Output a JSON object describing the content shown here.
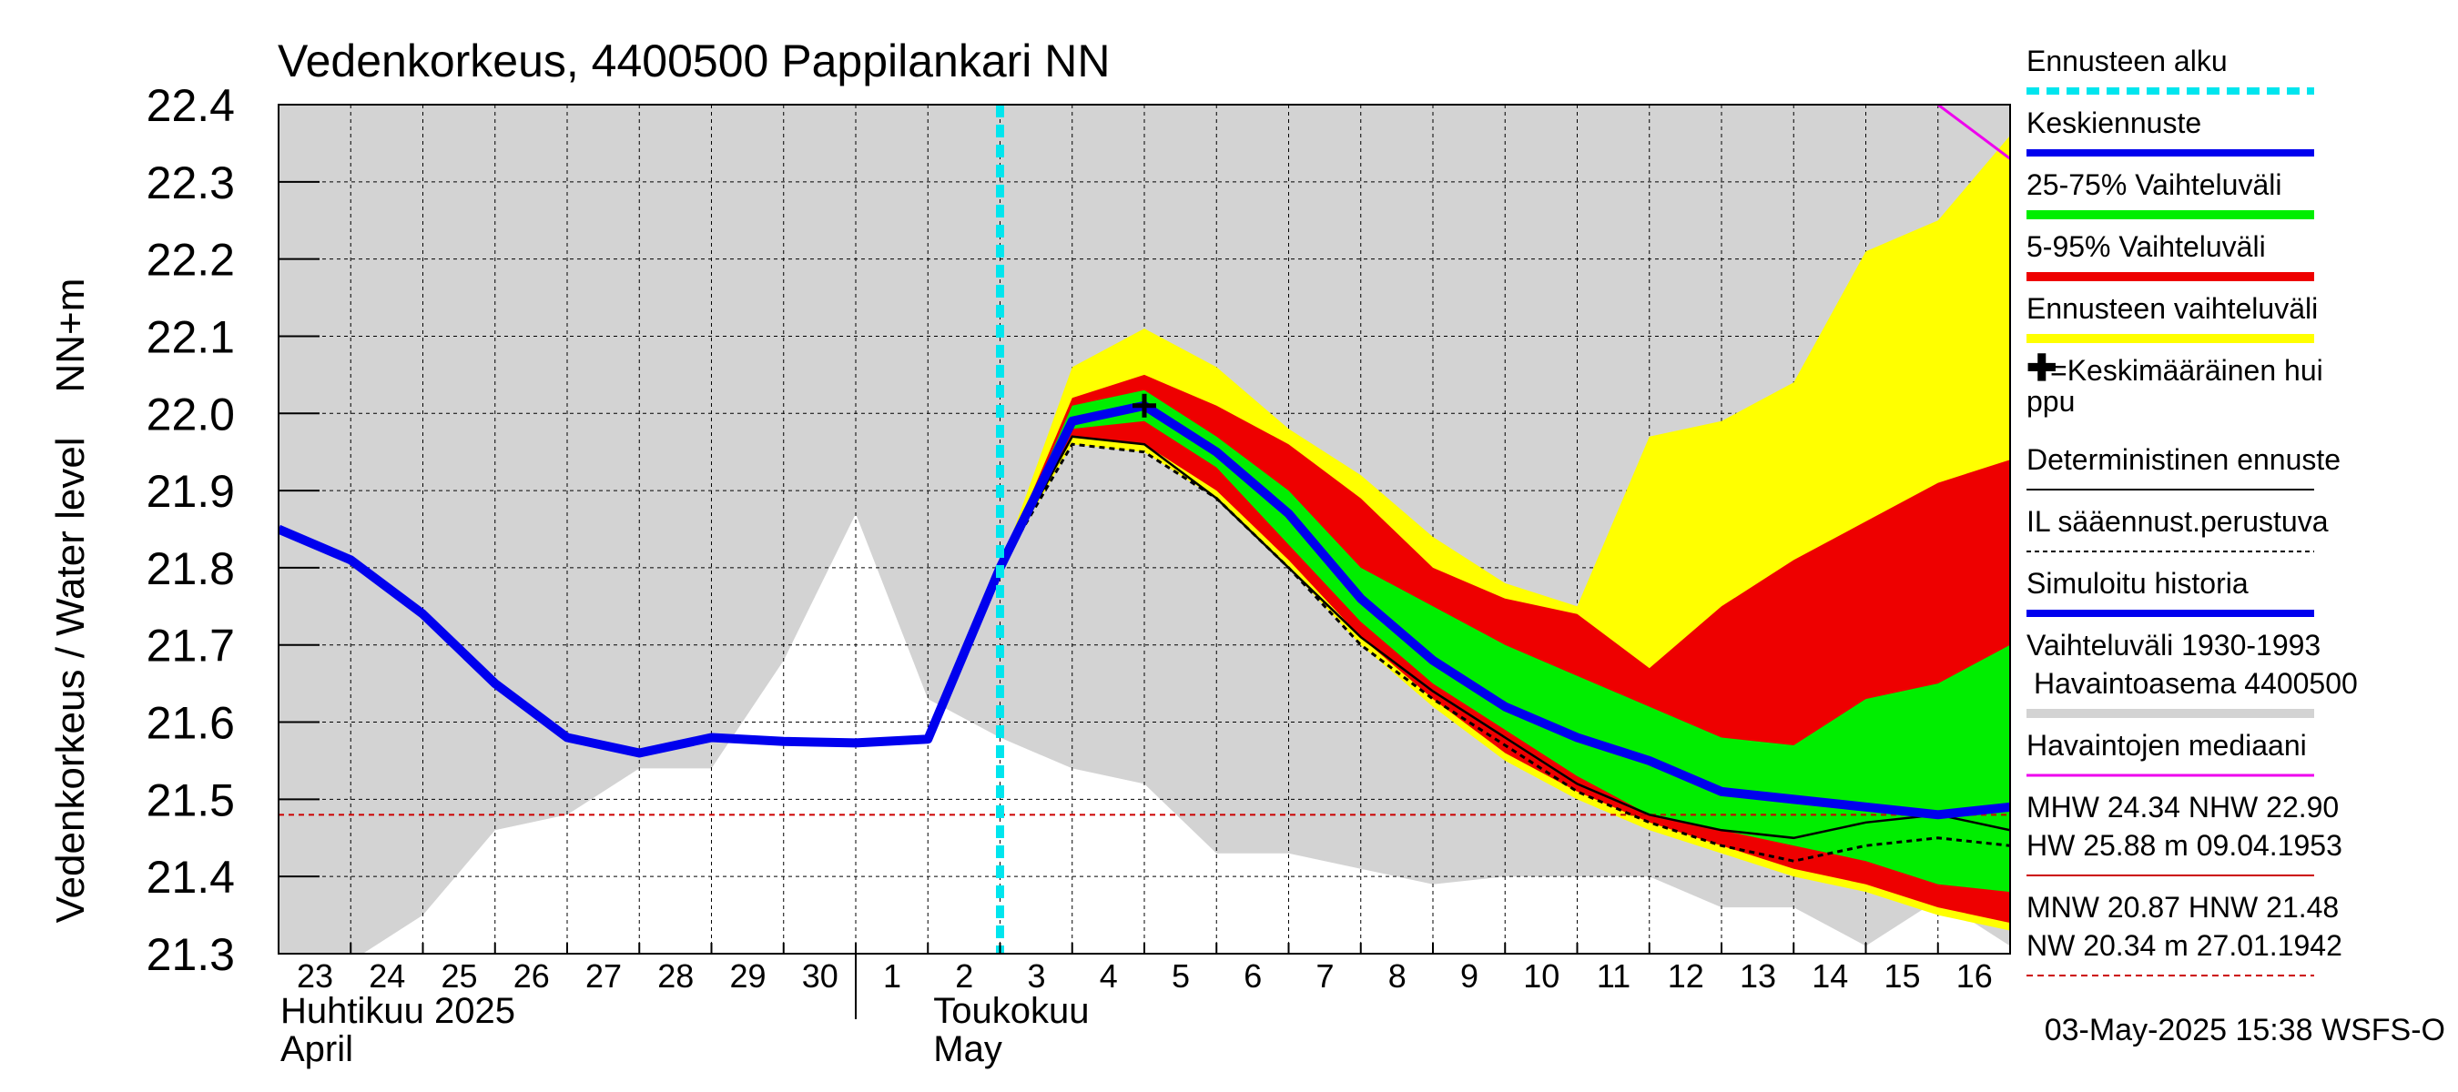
{
  "chart_data": {
    "type": "line",
    "title": "Vedenkorkeus, 4400500 Pappilankari NN",
    "ylabel": "Vedenkorkeus / Water level    NN+m",
    "ylim": [
      21.3,
      22.4
    ],
    "yticks": [
      "21.3",
      "21.4",
      "21.5",
      "21.6",
      "21.7",
      "21.8",
      "21.9",
      "22.0",
      "22.1",
      "22.2",
      "22.3",
      "22.4"
    ],
    "xlim": [
      0,
      24
    ],
    "x_tick_labels": [
      "23",
      "24",
      "25",
      "26",
      "27",
      "28",
      "29",
      "30",
      "1",
      "2",
      "3",
      "4",
      "5",
      "6",
      "7",
      "8",
      "9",
      "10",
      "11",
      "12",
      "13",
      "14",
      "15",
      "16"
    ],
    "month_labels": [
      {
        "line1": "Huhtikuu  2025",
        "line2": "April",
        "x": 0
      },
      {
        "line1": "Toukokuu",
        "line2": "May",
        "x": 9
      }
    ],
    "month_divider_x": 8,
    "forecast_start_x": 10,
    "grid": true,
    "legend_position": "right",
    "footer": "03-May-2025 15:38 WSFS-O",
    "reference_lines": {
      "mhw_hw": 21.48
    },
    "series": [
      {
        "name": "Vaihteluväli 1930-1993 Havaintoasema 4400500",
        "kind": "band",
        "x": [
          0,
          1,
          2,
          3,
          4,
          5,
          6,
          7,
          8,
          9,
          10,
          11,
          12,
          13,
          14,
          15,
          16,
          17,
          18,
          19,
          20,
          21,
          22,
          23,
          24
        ],
        "lower": [
          21.3,
          21.29,
          21.35,
          21.46,
          21.48,
          21.54,
          21.54,
          21.68,
          21.87,
          21.63,
          21.58,
          21.54,
          21.52,
          21.43,
          21.43,
          21.41,
          21.39,
          21.4,
          21.4,
          21.4,
          21.36,
          21.36,
          21.31,
          21.37,
          21.31
        ],
        "upper": [
          22.4,
          22.4,
          22.4,
          22.4,
          22.4,
          22.4,
          22.4,
          22.4,
          22.4,
          22.4,
          22.4,
          22.4,
          22.4,
          22.4,
          22.4,
          22.4,
          22.4,
          22.4,
          22.4,
          22.4,
          22.4,
          22.4,
          22.4,
          22.4,
          22.4
        ]
      },
      {
        "name": "Ennusteen vaihteluväli",
        "kind": "band",
        "x": [
          10,
          11,
          12,
          13,
          14,
          15,
          16,
          17,
          18,
          19,
          20,
          21,
          22,
          23,
          24
        ],
        "lower": [
          21.8,
          21.96,
          21.95,
          21.89,
          21.8,
          21.7,
          21.62,
          21.55,
          21.5,
          21.46,
          21.43,
          21.4,
          21.38,
          21.35,
          21.33
        ],
        "upper": [
          21.8,
          22.06,
          22.11,
          22.06,
          21.98,
          21.92,
          21.84,
          21.78,
          21.75,
          21.97,
          21.99,
          22.04,
          22.21,
          22.25,
          22.36
        ]
      },
      {
        "name": "5-95% Vaihteluväli",
        "kind": "band",
        "x": [
          10,
          11,
          12,
          13,
          14,
          15,
          16,
          17,
          18,
          19,
          20,
          21,
          22,
          23,
          24
        ],
        "lower": [
          21.8,
          21.97,
          21.96,
          21.9,
          21.81,
          21.71,
          21.63,
          21.56,
          21.51,
          21.47,
          21.44,
          21.41,
          21.39,
          21.36,
          21.34
        ],
        "upper": [
          21.8,
          22.02,
          22.05,
          22.01,
          21.96,
          21.89,
          21.8,
          21.76,
          21.74,
          21.67,
          21.75,
          21.81,
          21.86,
          21.91,
          21.94
        ]
      },
      {
        "name": "25-75% Vaihteluväli",
        "kind": "band",
        "x": [
          10,
          11,
          12,
          13,
          14,
          15,
          16,
          17,
          18,
          19,
          20,
          21,
          22,
          23,
          24
        ],
        "lower": [
          21.8,
          21.98,
          21.99,
          21.93,
          21.83,
          21.73,
          21.65,
          21.59,
          21.53,
          21.48,
          21.46,
          21.44,
          21.42,
          21.39,
          21.38
        ],
        "upper": [
          21.8,
          22.01,
          22.03,
          21.97,
          21.9,
          21.8,
          21.75,
          21.7,
          21.66,
          21.62,
          21.58,
          21.57,
          21.63,
          21.65,
          21.7
        ]
      },
      {
        "name": "Simuloitu historia",
        "kind": "line",
        "x": [
          0,
          1,
          2,
          3,
          4,
          5,
          6,
          7,
          8,
          9,
          10
        ],
        "y": [
          21.85,
          21.81,
          21.74,
          21.65,
          21.58,
          21.56,
          21.58,
          21.575,
          21.573,
          21.578,
          21.8
        ]
      },
      {
        "name": "Keskiennuste",
        "kind": "line",
        "x": [
          10,
          11,
          12,
          13,
          14,
          15,
          16,
          17,
          18,
          19,
          20,
          21,
          22,
          23,
          24
        ],
        "y": [
          21.8,
          21.99,
          22.01,
          21.95,
          21.87,
          21.76,
          21.68,
          21.62,
          21.58,
          21.55,
          21.51,
          21.5,
          21.49,
          21.48,
          21.49
        ]
      },
      {
        "name": "Deterministinen ennuste",
        "kind": "line",
        "x": [
          10,
          11,
          12,
          13,
          14,
          15,
          16,
          17,
          18,
          19,
          20,
          21,
          22,
          23,
          24
        ],
        "y": [
          21.8,
          21.97,
          21.96,
          21.89,
          21.8,
          21.71,
          21.64,
          21.58,
          21.52,
          21.48,
          21.46,
          21.45,
          21.47,
          21.48,
          21.46
        ]
      },
      {
        "name": "IL sääennust.perustuva",
        "kind": "line",
        "x": [
          10,
          11,
          12,
          13,
          14,
          15,
          16,
          17,
          18,
          19,
          20,
          21,
          22,
          23,
          24
        ],
        "y": [
          21.8,
          21.96,
          21.95,
          21.89,
          21.8,
          21.7,
          21.63,
          21.57,
          21.51,
          21.47,
          21.44,
          21.42,
          21.44,
          21.45,
          21.44
        ]
      },
      {
        "name": "Havaintojen mediaani",
        "kind": "line",
        "x": [
          23.0,
          24
        ],
        "y": [
          22.4,
          22.33
        ]
      }
    ],
    "peak_marker": {
      "x": 12.0,
      "y": 22.01
    },
    "legend": [
      {
        "label": "Ennusteen alku",
        "style": "dash",
        "color": "#00e5ee",
        "width": 8
      },
      {
        "label": "Keskiennuste",
        "style": "solid",
        "color": "#0000ee",
        "width": 8
      },
      {
        "label": "25-75% Vaihteluväli",
        "style": "solid",
        "color": "#00ee00",
        "width": 10
      },
      {
        "label": "5-95% Vaihteluväli",
        "style": "solid",
        "color": "#ee0000",
        "width": 10
      },
      {
        "label": "Ennusteen vaihteluväli",
        "style": "solid",
        "color": "#ffff00",
        "width": 10
      },
      {
        "label": "✚=Keskimääräinen huippu",
        "style": "none",
        "color": "#000000",
        "width": 0
      },
      {
        "label": "Deterministinen ennuste",
        "style": "solid",
        "color": "#000000",
        "width": 2
      },
      {
        "label": "IL sääennust.perustuva",
        "style": "dot",
        "color": "#000000",
        "width": 2
      },
      {
        "label": "Simuloitu historia",
        "style": "solid",
        "color": "#0000ee",
        "width": 8
      },
      {
        "label": "Vaihteluväli 1930-1993\n Havaintoasema 4400500",
        "style": "solid",
        "color": "#d3d3d3",
        "width": 10
      },
      {
        "label": "Havaintojen mediaani",
        "style": "solid",
        "color": "#ee00ee",
        "width": 3
      },
      {
        "label": "MHW  24.34 NHW  22.90\nHW  25.88 m 09.04.1953",
        "style": "solid",
        "color": "#cc0000",
        "width": 2
      },
      {
        "label": "MNW  20.87 HNW  21.48\nNW  20.34 m 27.01.1942",
        "style": "dash",
        "color": "#cc0000",
        "width": 2
      }
    ],
    "colors": {
      "history_band": "#d3d3d3",
      "forecast_band": "#ffff00",
      "band_5_95": "#ee0000",
      "band_25_75": "#00ee00",
      "mean_forecast": "#0000ee",
      "forecast_start": "#00e5ee",
      "median": "#ee00ee",
      "reference": "#cc0000"
    }
  }
}
